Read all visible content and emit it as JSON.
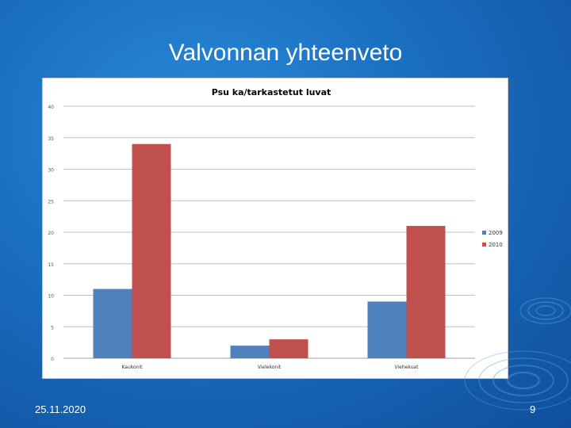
{
  "slide": {
    "title": "Valvonnan yhteenveto",
    "date": "25.11.2020",
    "page_number": "9"
  },
  "colors": {
    "background": "#1a6dbf",
    "series_2009": "#4f81bd",
    "series_2010": "#c0504d"
  },
  "chart_data": {
    "type": "bar",
    "title": "Psu ka/tarkastetut luvat",
    "categories": [
      "Kaukonit",
      "Vielekonit",
      "Viehekuat"
    ],
    "series": [
      {
        "name": "2009",
        "values": [
          11,
          2,
          9
        ],
        "color": "#4f81bd"
      },
      {
        "name": "2010",
        "values": [
          34,
          3,
          21
        ],
        "color": "#c0504d"
      }
    ],
    "yticks": [
      "0",
      "5",
      "10",
      "15",
      "20",
      "25",
      "30",
      "35",
      "40"
    ],
    "ylim": [
      0,
      40
    ],
    "grid": true,
    "legend": "right"
  }
}
